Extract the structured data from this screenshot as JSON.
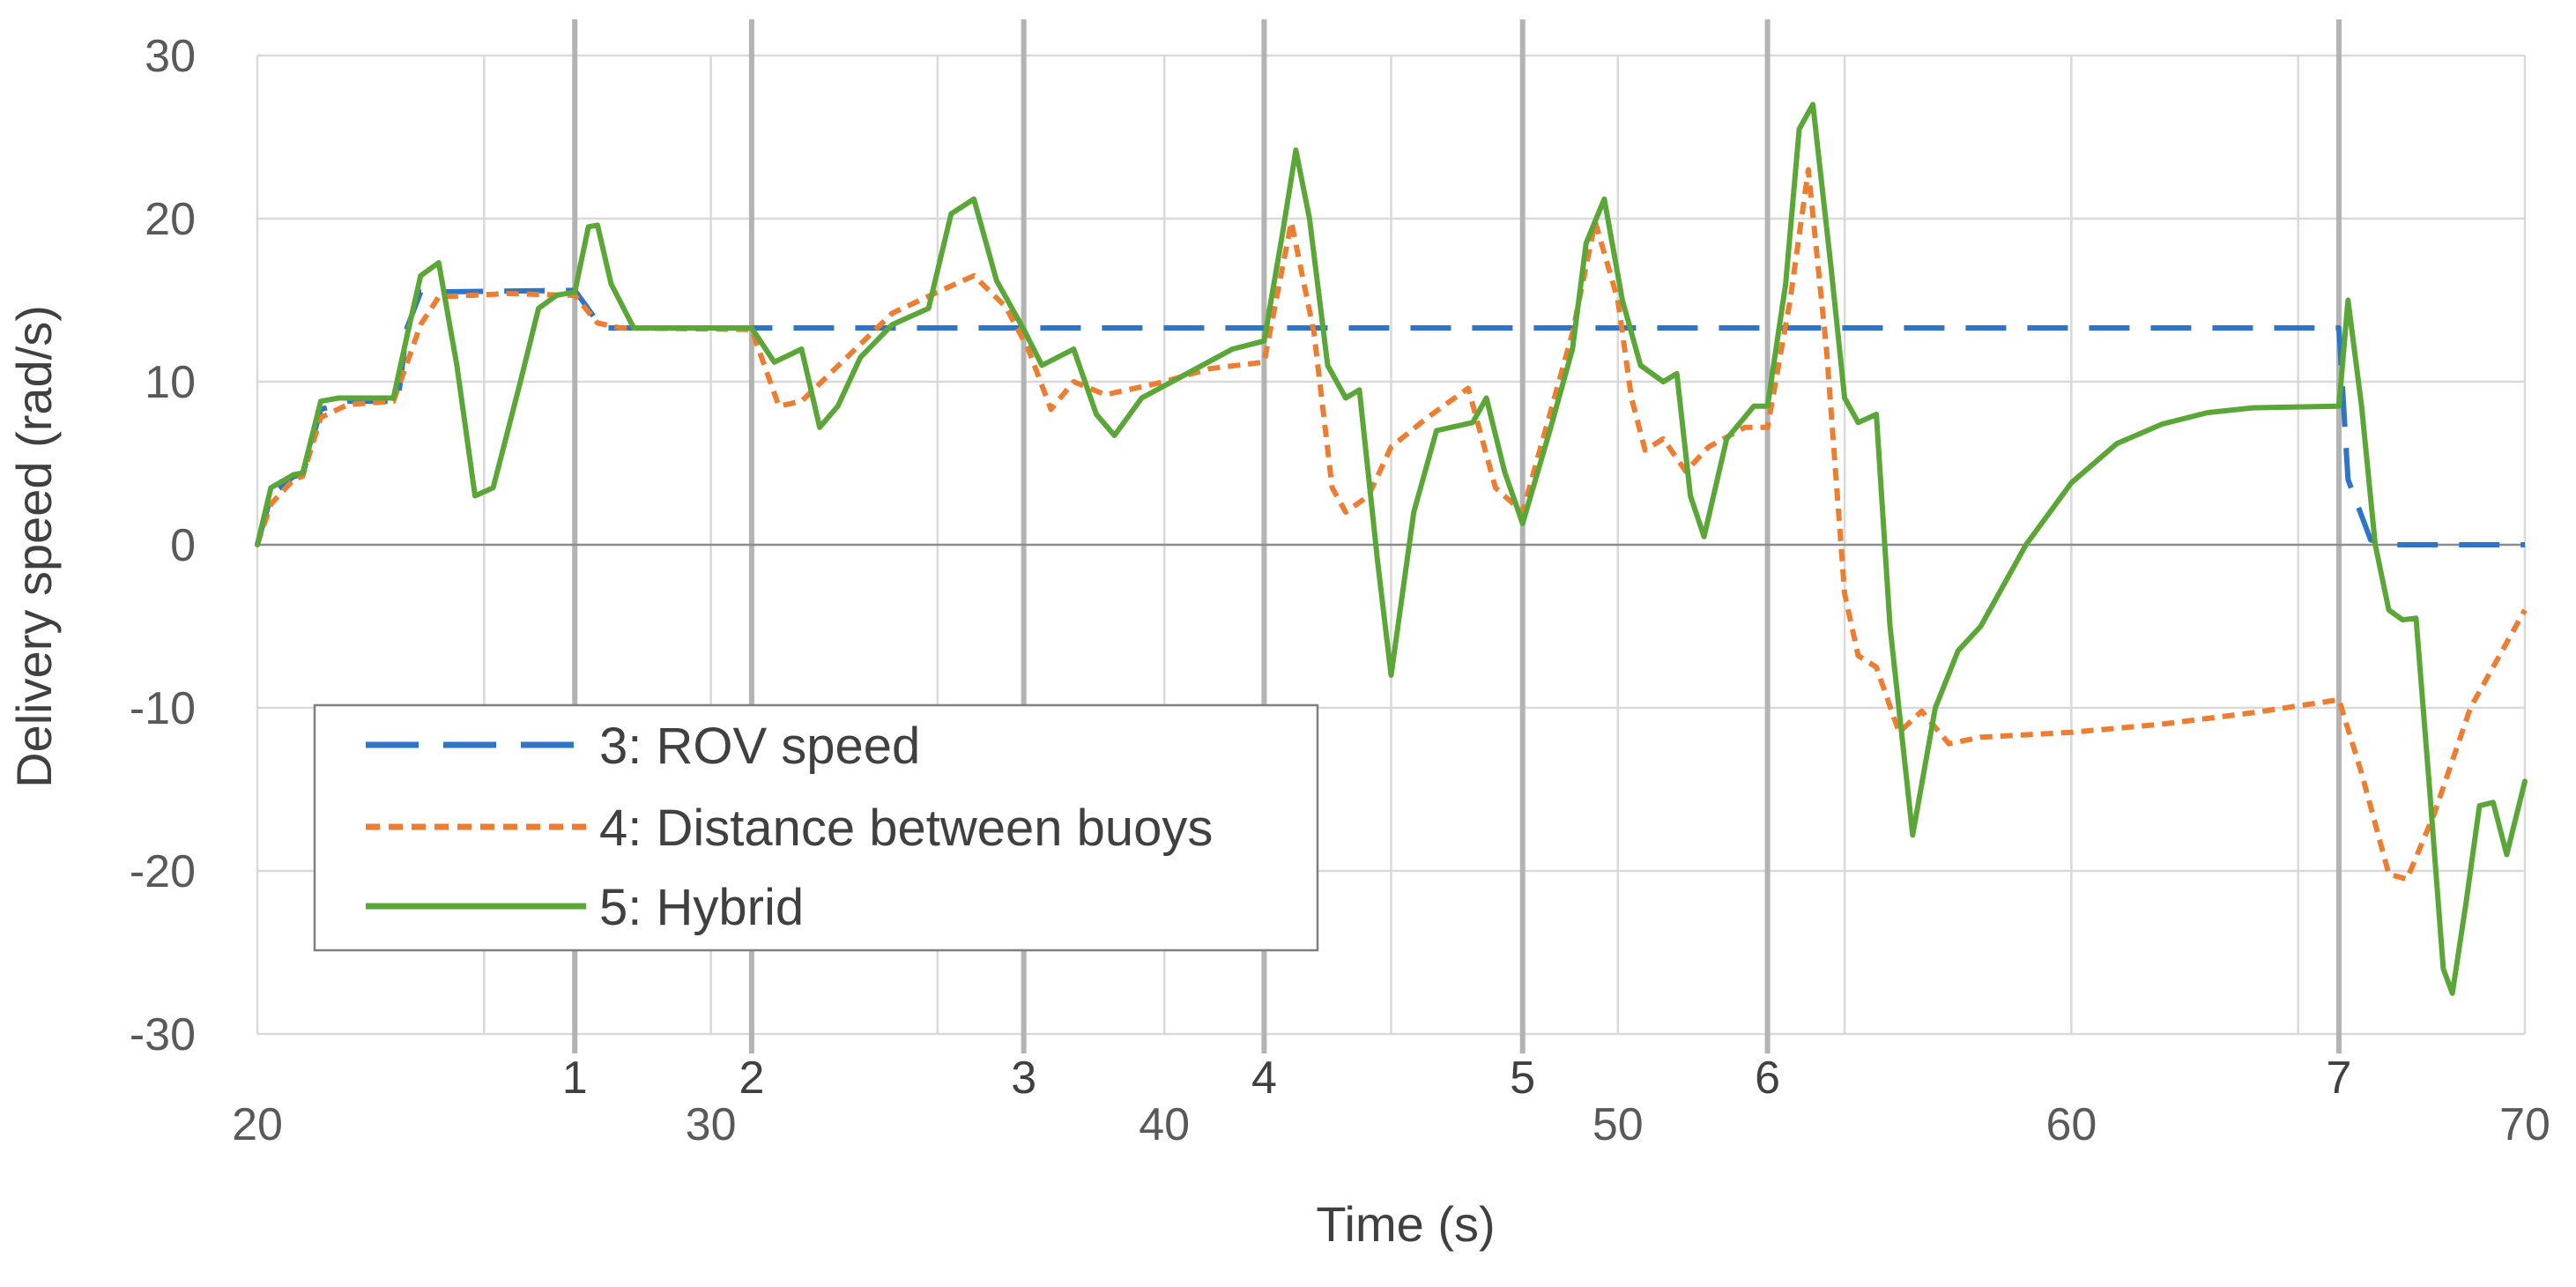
{
  "chart_data": {
    "type": "line",
    "title": "",
    "xlabel": "Time (s)",
    "ylabel": "Delivery speed (rad/s)",
    "xlim": [
      20,
      70
    ],
    "ylim": [
      -30,
      30
    ],
    "x_ticks": [
      20,
      30,
      40,
      50,
      60,
      70
    ],
    "y_ticks": [
      30,
      20,
      10,
      0,
      -10,
      -20,
      -30
    ],
    "minor_grid_x": [
      25,
      35,
      45,
      55,
      65
    ],
    "grid": true,
    "legend": {
      "placement": "lower-left"
    },
    "events": [
      {
        "label": "1",
        "x": 27.0
      },
      {
        "label": "2",
        "x": 30.9
      },
      {
        "label": "3",
        "x": 36.9
      },
      {
        "label": "4",
        "x": 42.2
      },
      {
        "label": "5",
        "x": 47.9
      },
      {
        "label": "6",
        "x": 53.3
      },
      {
        "label": "7",
        "x": 65.9
      }
    ],
    "series": [
      {
        "name": "3: ROV speed",
        "color": "#2e75c8",
        "dash": "dashed",
        "points": [
          [
            20.0,
            0.0
          ],
          [
            20.3,
            3.0
          ],
          [
            20.8,
            4.2
          ],
          [
            21.0,
            4.3
          ],
          [
            21.4,
            8.3
          ],
          [
            22.0,
            8.8
          ],
          [
            23.1,
            8.8
          ],
          [
            23.3,
            13.3
          ],
          [
            23.6,
            15.5
          ],
          [
            27.0,
            15.6
          ],
          [
            27.6,
            13.3
          ],
          [
            65.9,
            13.3
          ],
          [
            66.1,
            4.0
          ],
          [
            66.6,
            0.3
          ],
          [
            67.0,
            0.0
          ],
          [
            70.0,
            0.0
          ]
        ]
      },
      {
        "name": "4: Distance between buoys",
        "color": "#ed7d31",
        "dash": "dotted",
        "points": [
          [
            20.0,
            0.0
          ],
          [
            20.3,
            2.5
          ],
          [
            20.8,
            4.0
          ],
          [
            21.0,
            4.2
          ],
          [
            21.4,
            7.8
          ],
          [
            22.0,
            8.6
          ],
          [
            23.0,
            8.8
          ],
          [
            23.6,
            13.5
          ],
          [
            24.0,
            15.2
          ],
          [
            25.5,
            15.4
          ],
          [
            27.0,
            15.3
          ],
          [
            27.5,
            13.6
          ],
          [
            28.0,
            13.3
          ],
          [
            30.9,
            13.2
          ],
          [
            31.5,
            8.5
          ],
          [
            32.0,
            8.8
          ],
          [
            33.0,
            11.5
          ],
          [
            34.0,
            14.2
          ],
          [
            35.0,
            15.5
          ],
          [
            35.8,
            16.5
          ],
          [
            36.5,
            14.6
          ],
          [
            37.0,
            12.0
          ],
          [
            37.5,
            8.3
          ],
          [
            38.0,
            10.0
          ],
          [
            38.7,
            9.2
          ],
          [
            40.0,
            10.0
          ],
          [
            41.0,
            10.8
          ],
          [
            42.2,
            11.2
          ],
          [
            42.8,
            19.8
          ],
          [
            43.3,
            13.0
          ],
          [
            43.7,
            3.5
          ],
          [
            44.0,
            2.0
          ],
          [
            44.5,
            3.0
          ],
          [
            45.0,
            6.0
          ],
          [
            45.8,
            7.8
          ],
          [
            46.7,
            9.6
          ],
          [
            47.3,
            3.5
          ],
          [
            47.9,
            2.0
          ],
          [
            48.5,
            8.0
          ],
          [
            49.0,
            13.0
          ],
          [
            49.5,
            19.8
          ],
          [
            50.0,
            15.0
          ],
          [
            50.3,
            9.0
          ],
          [
            50.6,
            5.8
          ],
          [
            51.0,
            6.5
          ],
          [
            51.5,
            4.5
          ],
          [
            52.0,
            6.0
          ],
          [
            52.8,
            7.2
          ],
          [
            53.3,
            7.2
          ],
          [
            53.8,
            15.0
          ],
          [
            54.2,
            23.0
          ],
          [
            54.6,
            12.0
          ],
          [
            55.0,
            -3.0
          ],
          [
            55.3,
            -6.8
          ],
          [
            55.7,
            -7.5
          ],
          [
            56.2,
            -11.5
          ],
          [
            56.7,
            -10.2
          ],
          [
            57.3,
            -12.2
          ],
          [
            58.0,
            -11.8
          ],
          [
            60.0,
            -11.5
          ],
          [
            62.0,
            -11.0
          ],
          [
            64.0,
            -10.3
          ],
          [
            65.9,
            -9.5
          ],
          [
            66.4,
            -14.0
          ],
          [
            67.0,
            -20.2
          ],
          [
            67.4,
            -20.5
          ],
          [
            68.0,
            -16.5
          ],
          [
            68.8,
            -10.0
          ],
          [
            70.0,
            -4.0
          ]
        ]
      },
      {
        "name": "5: Hybrid",
        "color": "#5aa738",
        "dash": "solid",
        "points": [
          [
            20.0,
            0.0
          ],
          [
            20.3,
            3.5
          ],
          [
            20.8,
            4.3
          ],
          [
            21.0,
            4.4
          ],
          [
            21.4,
            8.8
          ],
          [
            21.8,
            9.0
          ],
          [
            23.0,
            9.0
          ],
          [
            23.3,
            12.8
          ],
          [
            23.6,
            16.5
          ],
          [
            24.0,
            17.3
          ],
          [
            24.4,
            11.0
          ],
          [
            24.8,
            3.0
          ],
          [
            25.2,
            3.5
          ],
          [
            25.8,
            10.0
          ],
          [
            26.2,
            14.5
          ],
          [
            26.6,
            15.3
          ],
          [
            27.0,
            15.5
          ],
          [
            27.3,
            19.5
          ],
          [
            27.5,
            19.6
          ],
          [
            27.8,
            16.0
          ],
          [
            28.3,
            13.3
          ],
          [
            30.9,
            13.3
          ],
          [
            31.4,
            11.2
          ],
          [
            32.0,
            12.0
          ],
          [
            32.4,
            7.2
          ],
          [
            32.8,
            8.5
          ],
          [
            33.3,
            11.5
          ],
          [
            34.0,
            13.5
          ],
          [
            34.8,
            14.5
          ],
          [
            35.3,
            20.3
          ],
          [
            35.8,
            21.2
          ],
          [
            36.3,
            16.2
          ],
          [
            36.9,
            13.2
          ],
          [
            37.3,
            11.0
          ],
          [
            38.0,
            12.0
          ],
          [
            38.5,
            8.0
          ],
          [
            38.9,
            6.7
          ],
          [
            39.5,
            9.0
          ],
          [
            40.5,
            10.5
          ],
          [
            41.5,
            12.0
          ],
          [
            42.2,
            12.5
          ],
          [
            42.6,
            19.0
          ],
          [
            42.9,
            24.2
          ],
          [
            43.2,
            20.0
          ],
          [
            43.6,
            11.0
          ],
          [
            44.0,
            9.0
          ],
          [
            44.3,
            9.5
          ],
          [
            44.7,
            -1.0
          ],
          [
            45.0,
            -8.0
          ],
          [
            45.5,
            2.0
          ],
          [
            46.0,
            7.0
          ],
          [
            46.8,
            7.5
          ],
          [
            47.1,
            9.0
          ],
          [
            47.5,
            4.5
          ],
          [
            47.9,
            1.3
          ],
          [
            48.5,
            7.0
          ],
          [
            49.0,
            12.0
          ],
          [
            49.3,
            18.5
          ],
          [
            49.7,
            21.2
          ],
          [
            50.1,
            15.0
          ],
          [
            50.5,
            11.0
          ],
          [
            51.0,
            10.0
          ],
          [
            51.3,
            10.5
          ],
          [
            51.6,
            3.0
          ],
          [
            51.9,
            0.5
          ],
          [
            52.4,
            6.5
          ],
          [
            53.0,
            8.5
          ],
          [
            53.3,
            8.5
          ],
          [
            53.7,
            16.0
          ],
          [
            54.0,
            25.5
          ],
          [
            54.3,
            27.0
          ],
          [
            54.7,
            17.0
          ],
          [
            55.0,
            9.0
          ],
          [
            55.3,
            7.5
          ],
          [
            55.7,
            8.0
          ],
          [
            56.0,
            -5.0
          ],
          [
            56.5,
            -17.8
          ],
          [
            57.0,
            -10.0
          ],
          [
            57.5,
            -6.5
          ],
          [
            58.0,
            -5.0
          ],
          [
            59.0,
            0.0
          ],
          [
            60.0,
            3.8
          ],
          [
            61.0,
            6.2
          ],
          [
            62.0,
            7.4
          ],
          [
            63.0,
            8.1
          ],
          [
            64.0,
            8.4
          ],
          [
            65.9,
            8.5
          ],
          [
            66.1,
            15.0
          ],
          [
            66.4,
            8.5
          ],
          [
            66.7,
            0.0
          ],
          [
            67.0,
            -4.0
          ],
          [
            67.3,
            -4.6
          ],
          [
            67.6,
            -4.5
          ],
          [
            67.9,
            -15.0
          ],
          [
            68.2,
            -26.0
          ],
          [
            68.4,
            -27.5
          ],
          [
            68.7,
            -22.0
          ],
          [
            69.0,
            -16.0
          ],
          [
            69.3,
            -15.8
          ],
          [
            69.6,
            -19.0
          ],
          [
            70.0,
            -14.5
          ]
        ]
      }
    ]
  }
}
